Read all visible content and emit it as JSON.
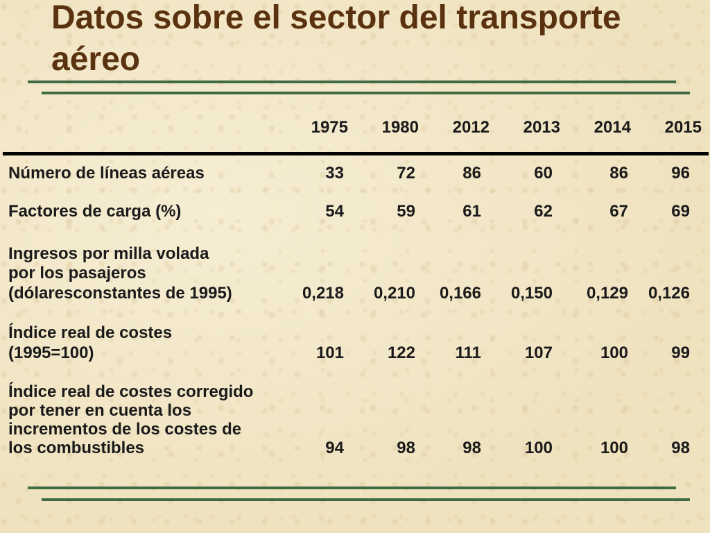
{
  "slide": {
    "title_line1": "Datos sobre el sector del transporte",
    "title_line2": "aéreo"
  },
  "table": {
    "years": [
      "1975",
      "1980",
      "2012",
      "2013",
      "2014",
      "2015"
    ],
    "rows": [
      {
        "label_lines": [
          "Número de líneas aéreas"
        ],
        "values": [
          "33",
          "72",
          "86",
          "60",
          "86",
          "96"
        ]
      },
      {
        "label_lines": [
          "Factores de carga (%)"
        ],
        "values": [
          "54",
          "59",
          "61",
          "62",
          "67",
          "69"
        ]
      },
      {
        "label_lines": [
          "Ingresos por milla volada",
          "por los pasajeros",
          "(dólaresconstantes de 1995)"
        ],
        "values": [
          "0,218",
          "0,210",
          "0,166",
          "0,150",
          "0,129",
          "0,126"
        ]
      },
      {
        "label_lines": [
          "Índice real de costes",
          "(1995=100)"
        ],
        "values": [
          "101",
          "122",
          "111",
          "107",
          "100",
          "99"
        ]
      },
      {
        "label_lines": [
          "Índice real de costes corregido",
          "por tener en cuenta los",
          "incrementos de los costes de",
          "los combustibles"
        ],
        "values": [
          "94",
          "98",
          "98",
          "100",
          "100",
          "98"
        ]
      }
    ]
  }
}
